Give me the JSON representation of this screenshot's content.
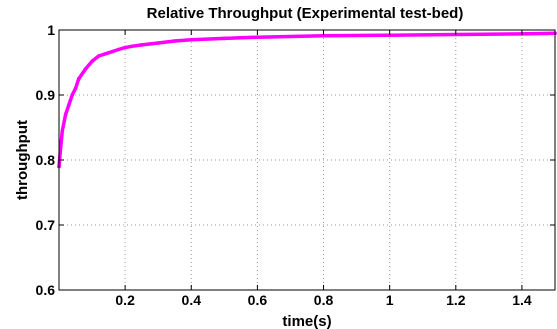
{
  "chart_data": {
    "type": "line",
    "title": "Relative Throughput (Experimental test-bed)",
    "xlabel": "time(s)",
    "ylabel": "throughput",
    "xlim": [
      0,
      1.5
    ],
    "ylim": [
      0.6,
      1.0
    ],
    "grid": true,
    "xticks": [
      0.2,
      0.4,
      0.6,
      0.8,
      1,
      1.2,
      1.4
    ],
    "xtick_labels": [
      "0.2",
      "0.4",
      "0.6",
      "0.8",
      "1",
      "1.2",
      "1.4"
    ],
    "yticks": [
      0.6,
      0.7,
      0.8,
      0.9,
      1
    ],
    "ytick_labels": [
      "0.6",
      "0.7",
      "0.8",
      "0.9",
      "1"
    ],
    "series": [
      {
        "color": "#ff00ff",
        "x": [
          0.0,
          0.005,
          0.01,
          0.02,
          0.03,
          0.04,
          0.05,
          0.06,
          0.08,
          0.1,
          0.12,
          0.15,
          0.18,
          0.2,
          0.22,
          0.25,
          0.3,
          0.35,
          0.4,
          0.5,
          0.6,
          0.8,
          1.0,
          1.2,
          1.4,
          1.5
        ],
        "y": [
          0.79,
          0.82,
          0.845,
          0.87,
          0.885,
          0.9,
          0.91,
          0.925,
          0.94,
          0.952,
          0.96,
          0.965,
          0.97,
          0.973,
          0.975,
          0.977,
          0.98,
          0.983,
          0.985,
          0.987,
          0.989,
          0.991,
          0.992,
          0.993,
          0.994,
          0.995
        ]
      }
    ]
  }
}
